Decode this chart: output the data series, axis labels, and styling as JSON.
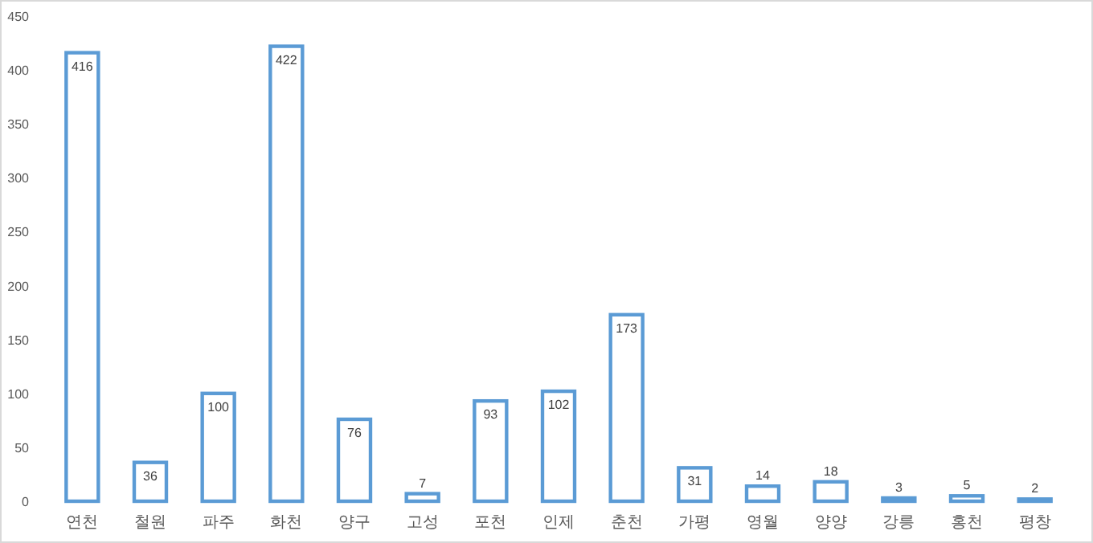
{
  "chart_data": {
    "type": "bar",
    "categories": [
      "연천",
      "철원",
      "파주",
      "화천",
      "양구",
      "고성",
      "포천",
      "인제",
      "춘천",
      "가평",
      "영월",
      "양양",
      "강릉",
      "홍천",
      "평창"
    ],
    "values": [
      416,
      36,
      100,
      422,
      76,
      7,
      93,
      102,
      173,
      31,
      14,
      18,
      3,
      5,
      2
    ],
    "color": "#5b9bd5",
    "ylim": [
      0,
      450
    ],
    "yticks": [
      0,
      50,
      100,
      150,
      200,
      250,
      300,
      350,
      400,
      450
    ],
    "grid": false,
    "data_labels": true
  }
}
